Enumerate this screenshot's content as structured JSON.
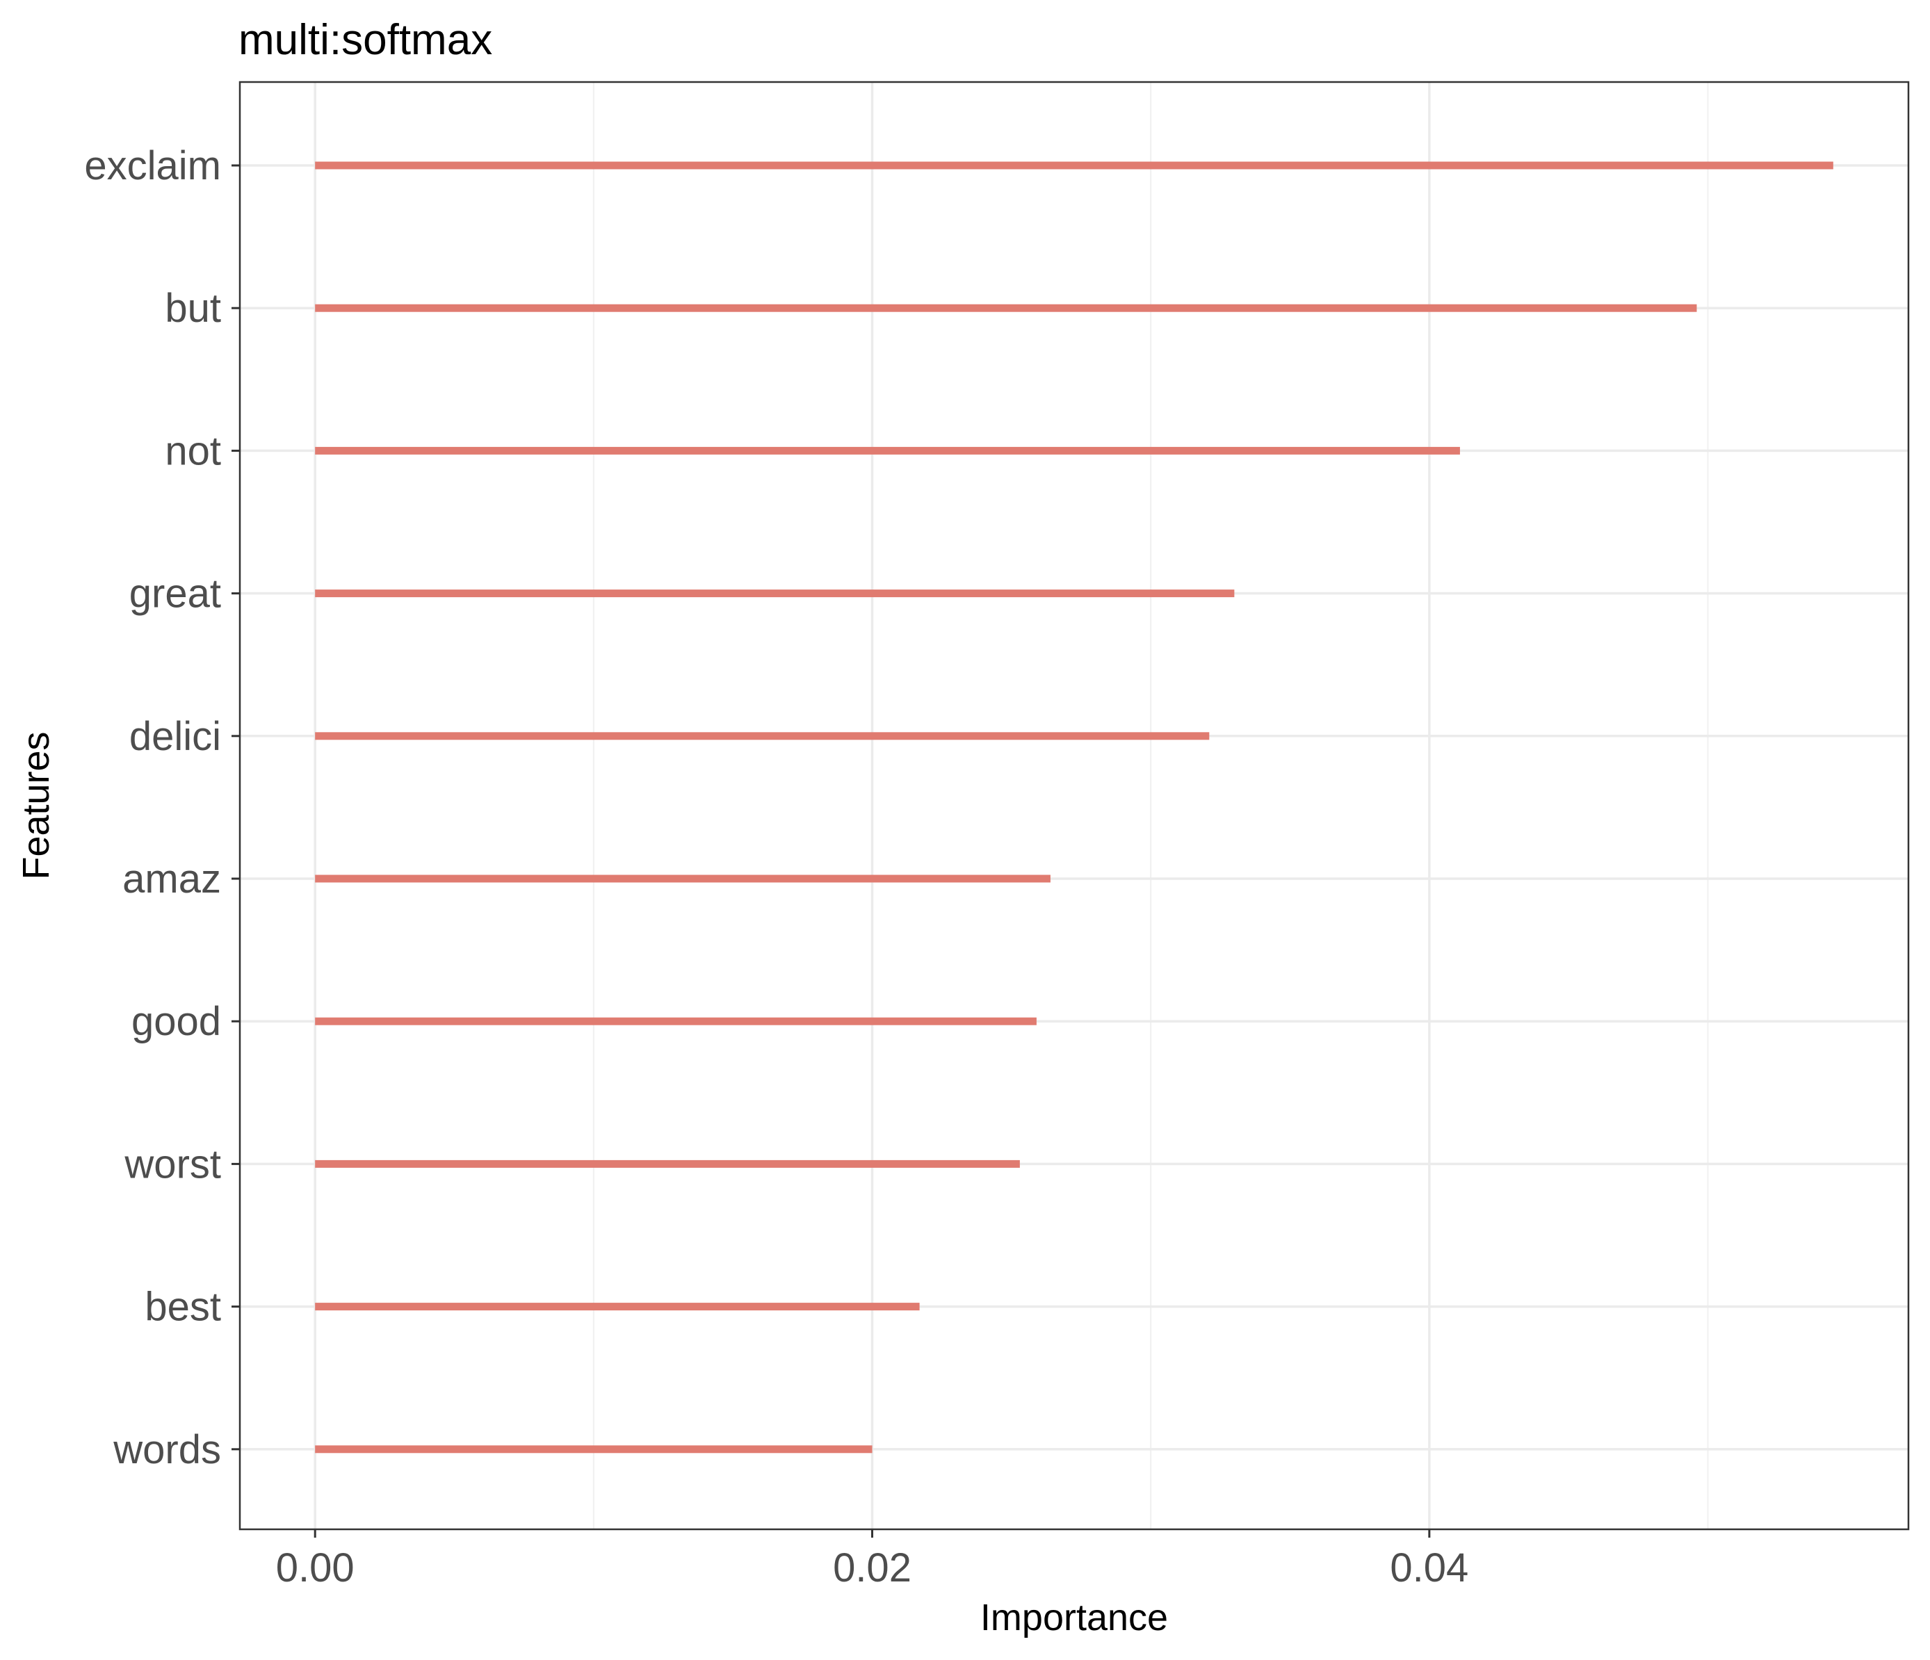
{
  "chart_data": {
    "type": "bar",
    "orientation": "horizontal",
    "title": "multi:softmax",
    "xlabel": "Importance",
    "ylabel": "Features",
    "categories": [
      "exclaim",
      "but",
      "not",
      "great",
      "delici",
      "amaz",
      "good",
      "worst",
      "best",
      "words"
    ],
    "values": [
      0.0545,
      0.0496,
      0.0411,
      0.033,
      0.0321,
      0.0264,
      0.0259,
      0.0253,
      0.0217,
      0.02
    ],
    "xlim": [
      -0.0027,
      0.0572
    ],
    "xticks": [
      0,
      0.02,
      0.04
    ],
    "xtick_labels": [
      "0.00",
      "0.02",
      "0.04"
    ],
    "grid": true,
    "bar_color": "#e07b70",
    "legend": "none"
  }
}
